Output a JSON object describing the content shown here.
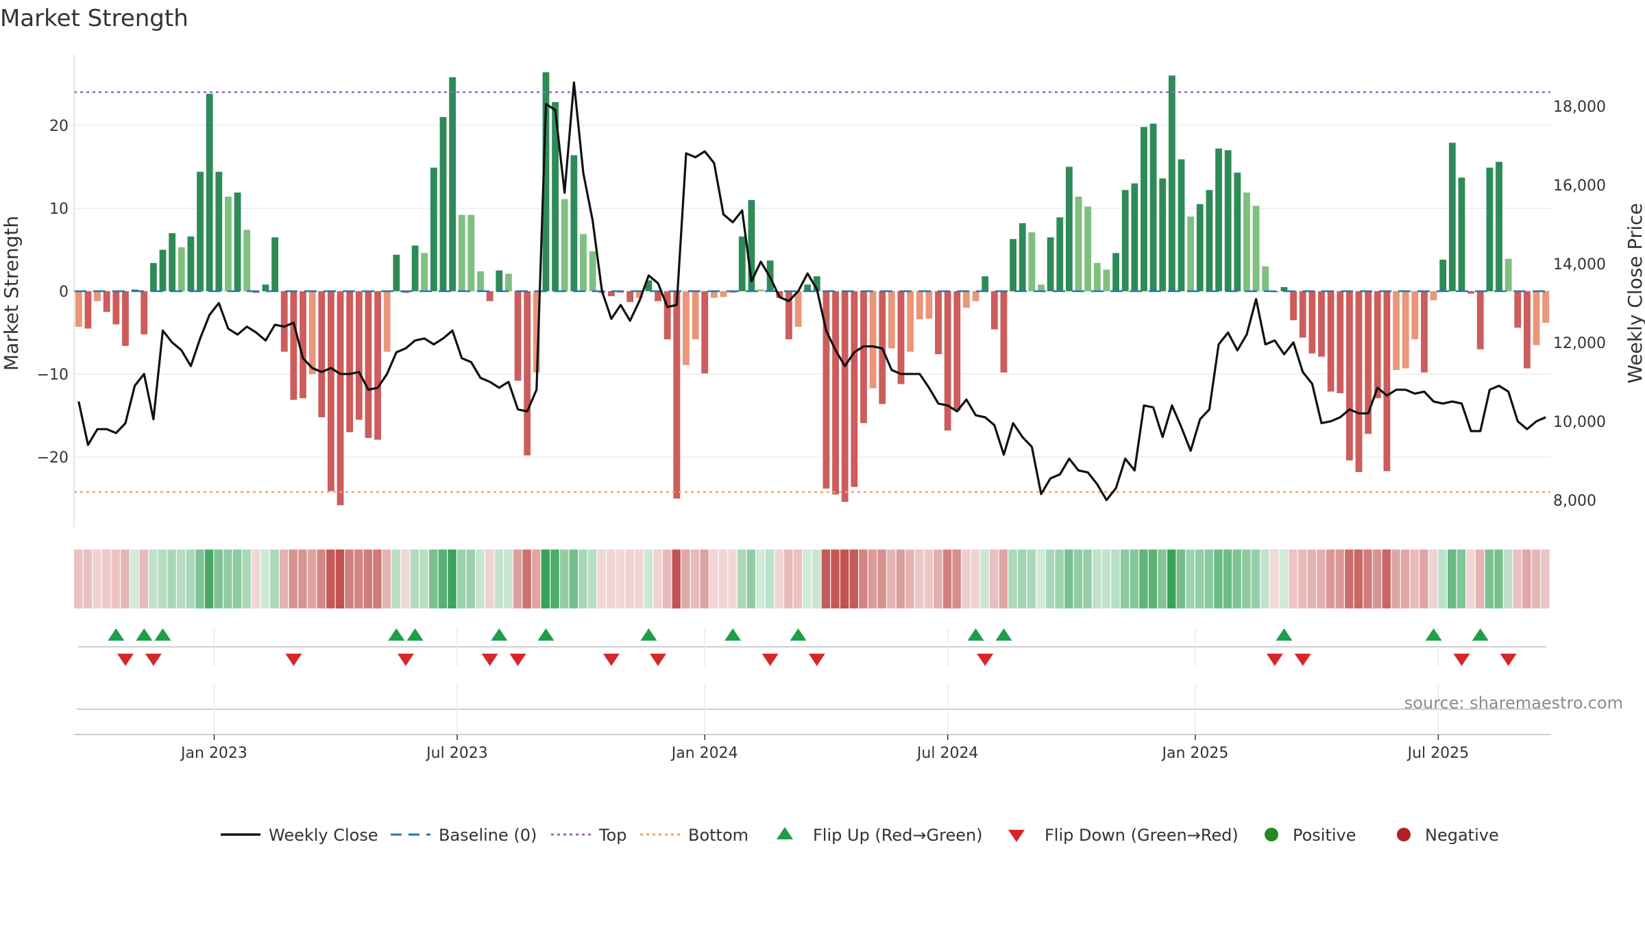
{
  "chart_data": {
    "type": "bar",
    "title": "Market Strength",
    "y_left_label": "Market Strength",
    "y_right_label": "Weekly Close Price",
    "y_left_ticks": [
      20,
      10,
      0,
      -10,
      -20
    ],
    "y_left_tick_labels": [
      "20",
      "10",
      "0",
      "−10",
      "−20"
    ],
    "y_left_range": [
      -28.5,
      28.5
    ],
    "y_right_ticks": [
      18000,
      16000,
      14000,
      12000,
      10000,
      8000
    ],
    "y_right_tick_labels": [
      "18,000",
      "16,000",
      "14,000",
      "12,000",
      "10,000",
      "8,000"
    ],
    "y_right_range": [
      7300,
      19300
    ],
    "top_line": 24,
    "bottom_line": -24.2,
    "x_ticks": [
      {
        "label": "Jan 2023",
        "week": 15
      },
      {
        "label": "Jul 2023",
        "week": 41
      },
      {
        "label": "Jan 2024",
        "week": 67.5
      },
      {
        "label": "Jul 2024",
        "week": 93.5
      },
      {
        "label": "Jan 2025",
        "week": 120
      },
      {
        "label": "Jul 2025",
        "week": 146
      }
    ],
    "strength": [
      -4.3,
      -4.5,
      -1.2,
      -2.5,
      -4,
      -6.6,
      0.2,
      -5.2,
      3.4,
      5,
      7,
      5.3,
      6.6,
      14.4,
      23.8,
      14.4,
      11.4,
      11.9,
      7.4,
      -0.2,
      0.8,
      6.5,
      -7.3,
      -13.1,
      -12.9,
      -10,
      -15.2,
      -24.1,
      -25.8,
      -17,
      -15.5,
      -17.7,
      -17.9,
      -7.3,
      4.4,
      -0.2,
      5.5,
      4.6,
      14.9,
      21,
      25.8,
      9.2,
      9.2,
      2.4,
      -1.2,
      2.5,
      2.1,
      -10.8,
      -19.8,
      -9.8,
      26.4,
      22.8,
      11.1,
      16.4,
      6.9,
      4.8,
      -0.2,
      -0.6,
      -0.2,
      -1.3,
      -0.8,
      1.3,
      -1.2,
      -5.8,
      -25,
      -8.9,
      -5.8,
      -9.9,
      -0.8,
      -0.7,
      -0.2,
      6.6,
      11,
      0.2,
      3.7,
      -0.8,
      -5.8,
      -4.3,
      0.8,
      1.8,
      -23.8,
      -24.5,
      -25.4,
      -23.6,
      -15.9,
      -11.7,
      -13.6,
      -6.9,
      -11.2,
      -7.3,
      -3.4,
      -3.3,
      -7.6,
      -16.8,
      -14.4,
      -2,
      -1.2,
      1.8,
      -4.6,
      -9.8,
      6.3,
      8.2,
      7.1,
      0.8,
      6.5,
      8.9,
      15,
      11.4,
      10.2,
      3.4,
      2.6,
      4.6,
      12.2,
      13,
      19.8,
      20.2,
      13.6,
      26,
      15.9,
      9,
      10.5,
      12.2,
      17.2,
      17,
      14.3,
      11.9,
      10.3,
      3,
      -0.1,
      0.5,
      -3.5,
      -5.6,
      -7.5,
      -7.9,
      -12.1,
      -12.3,
      -20.4,
      -21.8,
      -17.2,
      -12.9,
      -21.7,
      -9.5,
      -9.3,
      -5.8,
      -9.8,
      -1.1,
      3.8,
      17.9,
      13.7,
      -0.3,
      -7,
      14.9,
      15.6,
      3.9,
      -4.4,
      -9.3,
      -6.5,
      -3.8
    ],
    "close": [
      10.5,
      9.4,
      9.8,
      9.8,
      9.7,
      9.95,
      10.9,
      11.2,
      10.05,
      12.3,
      12,
      11.8,
      11.4,
      12.1,
      12.7,
      13,
      12.35,
      12.2,
      12.4,
      12.25,
      12.05,
      12.45,
      12.4,
      12.5,
      11.6,
      11.35,
      11.25,
      11.35,
      11.2,
      11.2,
      11.25,
      10.8,
      10.85,
      11.2,
      11.75,
      11.85,
      12.05,
      12.1,
      11.95,
      12.1,
      12.3,
      11.6,
      11.5,
      11.1,
      11,
      10.85,
      11,
      10.3,
      10.25,
      10.8,
      18.05,
      17.9,
      15.8,
      18.6,
      16.3,
      15.1,
      13.3,
      12.6,
      12.95,
      12.55,
      13.05,
      13.7,
      13.5,
      12.9,
      12.95,
      16.8,
      16.7,
      16.85,
      16.55,
      15.25,
      15.05,
      15.35,
      13.55,
      14.05,
      13.65,
      13.15,
      13.05,
      13.3,
      13.75,
      13.35,
      12.3,
      11.8,
      11.4,
      11.75,
      11.9,
      11.9,
      11.85,
      11.3,
      11.2,
      11.2,
      11.2,
      10.85,
      10.45,
      10.4,
      10.25,
      10.55,
      10.15,
      10.1,
      9.9,
      9.15,
      9.95,
      9.6,
      9.35,
      8.15,
      8.55,
      8.65,
      9.05,
      8.75,
      8.7,
      8.4,
      8,
      8.3,
      9.05,
      8.75,
      10.4,
      10.35,
      9.6,
      10.4,
      9.85,
      9.25,
      10.05,
      10.3,
      11.95,
      12.25,
      11.8,
      12.2,
      13.1,
      11.95,
      12.05,
      11.7,
      12,
      11.25,
      10.95,
      9.95,
      10,
      10.1,
      10.3,
      10.2,
      10.2,
      10.85,
      10.65,
      10.8,
      10.8,
      10.7,
      10.75,
      10.5,
      10.45,
      10.5,
      10.45,
      9.75,
      9.75,
      10.8,
      10.9,
      10.75,
      10,
      9.8,
      10,
      10.1
    ],
    "flip_up_weeks": [
      4,
      7,
      9,
      34,
      36,
      45,
      50,
      61,
      70,
      77,
      96,
      99,
      129,
      145,
      150
    ],
    "flip_down_weeks": [
      5,
      8,
      23,
      35,
      44,
      47,
      57,
      62,
      74,
      79,
      97,
      128,
      131,
      148,
      153
    ],
    "legend": [
      {
        "label": "Weekly Close",
        "marker": "line-solid",
        "color": "#111111"
      },
      {
        "label": "Baseline (0)",
        "marker": "line-dash",
        "color": "#1f77b4"
      },
      {
        "label": "Top",
        "marker": "line-dot",
        "color": "#9467bd"
      },
      {
        "label": "Bottom",
        "marker": "line-dot",
        "color": "#f4a460"
      },
      {
        "label": "Flip Up (Red→Green)",
        "marker": "triangle-up",
        "color": "#1f9e4a"
      },
      {
        "label": "Flip Down (Green→Red)",
        "marker": "triangle-down",
        "color": "#d62728"
      },
      {
        "label": "Positive",
        "marker": "circle",
        "color": "#228b22"
      },
      {
        "label": "Negative",
        "marker": "circle",
        "color": "#b22222"
      }
    ],
    "source": "source: sharemaestro.com"
  },
  "colors": {
    "pos_dark": "#2e8b57",
    "pos_light": "#7fbf7f",
    "neg_dark": "#cd5c5c",
    "neg_light": "#e9967a",
    "close_line": "#111111",
    "baseline": "#1f77b4",
    "top_line": "#9467bd",
    "bottom_line": "#f4a460",
    "grid": "#ececec"
  }
}
